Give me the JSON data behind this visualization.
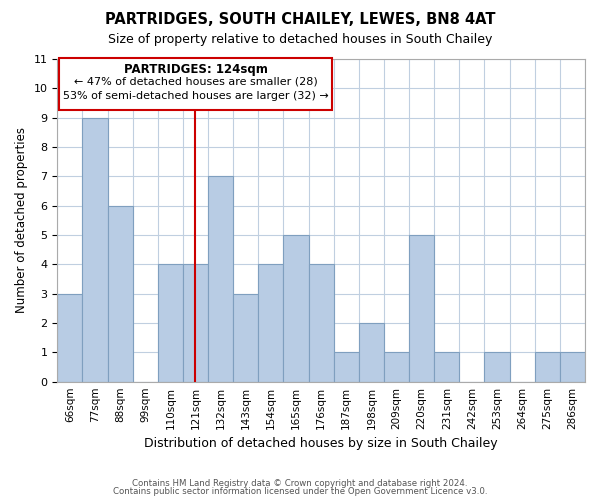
{
  "title": "PARTRIDGES, SOUTH CHAILEY, LEWES, BN8 4AT",
  "subtitle": "Size of property relative to detached houses in South Chailey",
  "xlabel": "Distribution of detached houses by size in South Chailey",
  "ylabel": "Number of detached properties",
  "bar_labels": [
    "66sqm",
    "77sqm",
    "88sqm",
    "99sqm",
    "110sqm",
    "121sqm",
    "132sqm",
    "143sqm",
    "154sqm",
    "165sqm",
    "176sqm",
    "187sqm",
    "198sqm",
    "209sqm",
    "220sqm",
    "231sqm",
    "242sqm",
    "253sqm",
    "264sqm",
    "275sqm",
    "286sqm"
  ],
  "bar_values": [
    3,
    9,
    6,
    0,
    4,
    4,
    7,
    3,
    4,
    5,
    4,
    1,
    2,
    1,
    5,
    1,
    0,
    1,
    0,
    1,
    1
  ],
  "bar_color": "#b8cce4",
  "bar_edge_color": "#7f9fbf",
  "ylim": [
    0,
    11
  ],
  "yticks": [
    0,
    1,
    2,
    3,
    4,
    5,
    6,
    7,
    8,
    9,
    10,
    11
  ],
  "property_line_color": "#cc0000",
  "annotation_title": "PARTRIDGES: 124sqm",
  "annotation_line1": "← 47% of detached houses are smaller (28)",
  "annotation_line2": "53% of semi-detached houses are larger (32) →",
  "annotation_box_color": "#ffffff",
  "annotation_box_edge": "#cc0000",
  "footer1": "Contains HM Land Registry data © Crown copyright and database right 2024.",
  "footer2": "Contains public sector information licensed under the Open Government Licence v3.0.",
  "background_color": "#ffffff",
  "grid_color": "#c0cfe0"
}
